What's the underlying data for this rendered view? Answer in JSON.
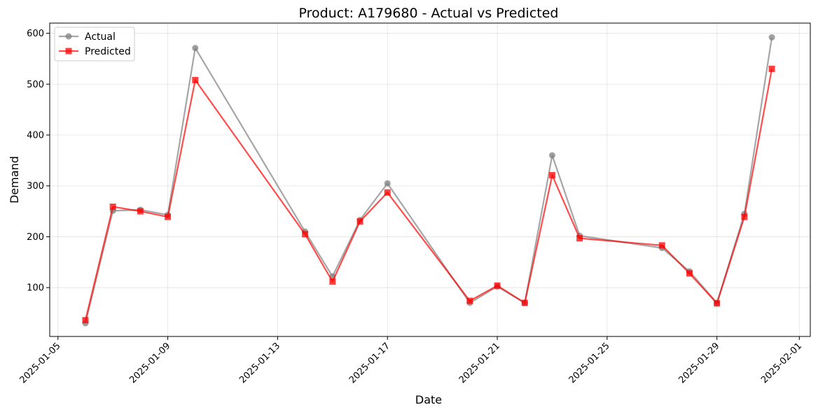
{
  "chart_data": {
    "type": "line",
    "title": "Product: A179680 - Actual vs Predicted",
    "xlabel": "Date",
    "ylabel": "Demand",
    "x": [
      "2025-01-06",
      "2025-01-07",
      "2025-01-08",
      "2025-01-09",
      "2025-01-10",
      "2025-01-14",
      "2025-01-15",
      "2025-01-16",
      "2025-01-17",
      "2025-01-20",
      "2025-01-21",
      "2025-01-22",
      "2025-01-23",
      "2025-01-24",
      "2025-01-27",
      "2025-01-28",
      "2025-01-29",
      "2025-01-30",
      "2025-01-31"
    ],
    "series": [
      {
        "name": "Actual",
        "color": "#808080",
        "marker": "circle",
        "values": [
          30,
          251,
          253,
          243,
          571,
          210,
          122,
          233,
          305,
          70,
          102,
          70,
          360,
          202,
          178,
          132,
          70,
          245,
          592
        ]
      },
      {
        "name": "Predicted",
        "color": "#ff0000",
        "marker": "square",
        "values": [
          36,
          259,
          250,
          239,
          508,
          205,
          112,
          230,
          287,
          74,
          104,
          70,
          321,
          197,
          183,
          128,
          69,
          239,
          530
        ]
      }
    ],
    "xticks": [
      "2025-01-05",
      "2025-01-09",
      "2025-01-13",
      "2025-01-17",
      "2025-01-21",
      "2025-01-25",
      "2025-01-29",
      "2025-02-01"
    ],
    "yticks": [
      100,
      200,
      300,
      400,
      500,
      600
    ],
    "xlim": [
      "2025-01-05",
      "2025-02-01"
    ],
    "ylim": [
      4,
      620
    ],
    "grid": true,
    "legend": "top-left"
  }
}
